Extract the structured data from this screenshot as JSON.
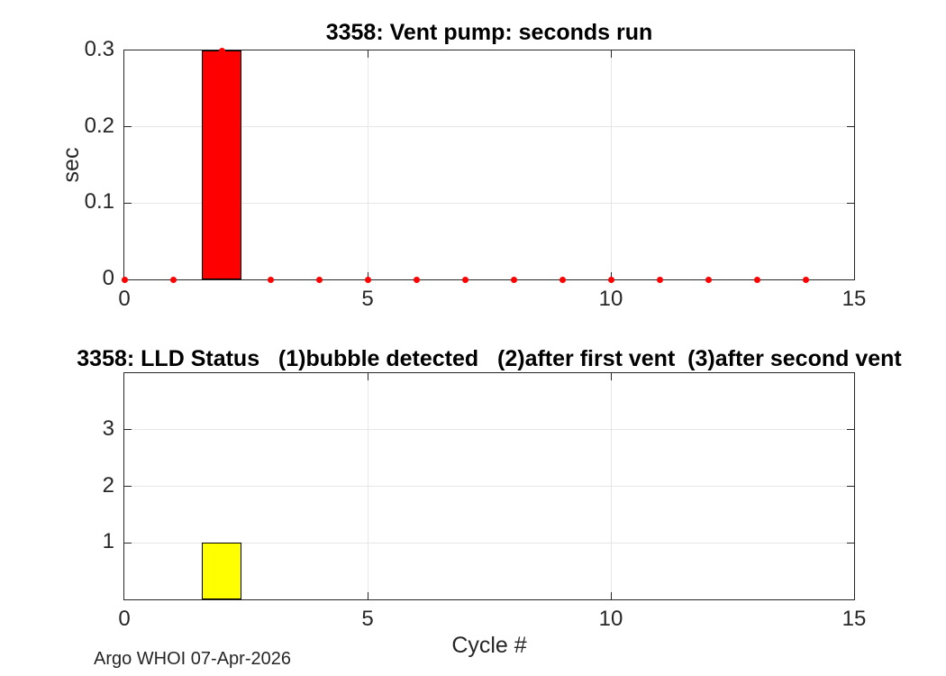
{
  "figure": {
    "footer": "Argo WHOI 07-Apr-2026"
  },
  "colors": {
    "background": "#ffffff",
    "axis": "#262626",
    "grid": "#e6e6e6",
    "title": "#000000",
    "bar_red": "#ff0000",
    "bar_yellow": "#ffff00",
    "marker_red": "#ff0000"
  },
  "chart_data": [
    {
      "type": "bar",
      "title": "3358: Vent pump: seconds run",
      "xlabel": "",
      "ylabel": "sec",
      "xlim": [
        0,
        15
      ],
      "ylim": [
        0,
        0.3
      ],
      "grid": true,
      "legend": "none",
      "xticks": [
        {
          "v": 0,
          "label": "0"
        },
        {
          "v": 5,
          "label": "5"
        },
        {
          "v": 10,
          "label": "10"
        },
        {
          "v": 15,
          "label": "15"
        }
      ],
      "yticks": [
        {
          "v": 0,
          "label": "0"
        },
        {
          "v": 0.1,
          "label": "0.1"
        },
        {
          "v": 0.2,
          "label": "0.2"
        },
        {
          "v": 0.3,
          "label": "0.3"
        }
      ],
      "bar_width": 0.8,
      "bar_color": "#ff0000",
      "bar_edge_color": "#000000",
      "bars": [
        {
          "x": 2,
          "y": 0.3
        }
      ],
      "markers": {
        "color": "#ff0000",
        "size": 7,
        "x": [
          0,
          1,
          2,
          3,
          4,
          5,
          6,
          7,
          8,
          9,
          10,
          11,
          12,
          13,
          14
        ],
        "y": [
          0,
          0,
          0.3,
          0,
          0,
          0,
          0,
          0,
          0,
          0,
          0,
          0,
          0,
          0,
          0
        ]
      }
    },
    {
      "type": "bar",
      "title": "3358: LLD Status   (1)bubble detected   (2)after first vent  (3)after second vent",
      "xlabel": "Cycle #",
      "ylabel": "",
      "xlim": [
        0,
        15
      ],
      "ylim": [
        0,
        4
      ],
      "grid": true,
      "legend": "none",
      "xticks": [
        {
          "v": 0,
          "label": "0"
        },
        {
          "v": 5,
          "label": "5"
        },
        {
          "v": 10,
          "label": "10"
        },
        {
          "v": 15,
          "label": "15"
        }
      ],
      "yticks": [
        {
          "v": 1,
          "label": "1"
        },
        {
          "v": 2,
          "label": "2"
        },
        {
          "v": 3,
          "label": "3"
        }
      ],
      "bar_width": 0.8,
      "bar_color": "#ffff00",
      "bar_edge_color": "#000000",
      "bars": [
        {
          "x": 2,
          "y": 1
        }
      ]
    }
  ]
}
